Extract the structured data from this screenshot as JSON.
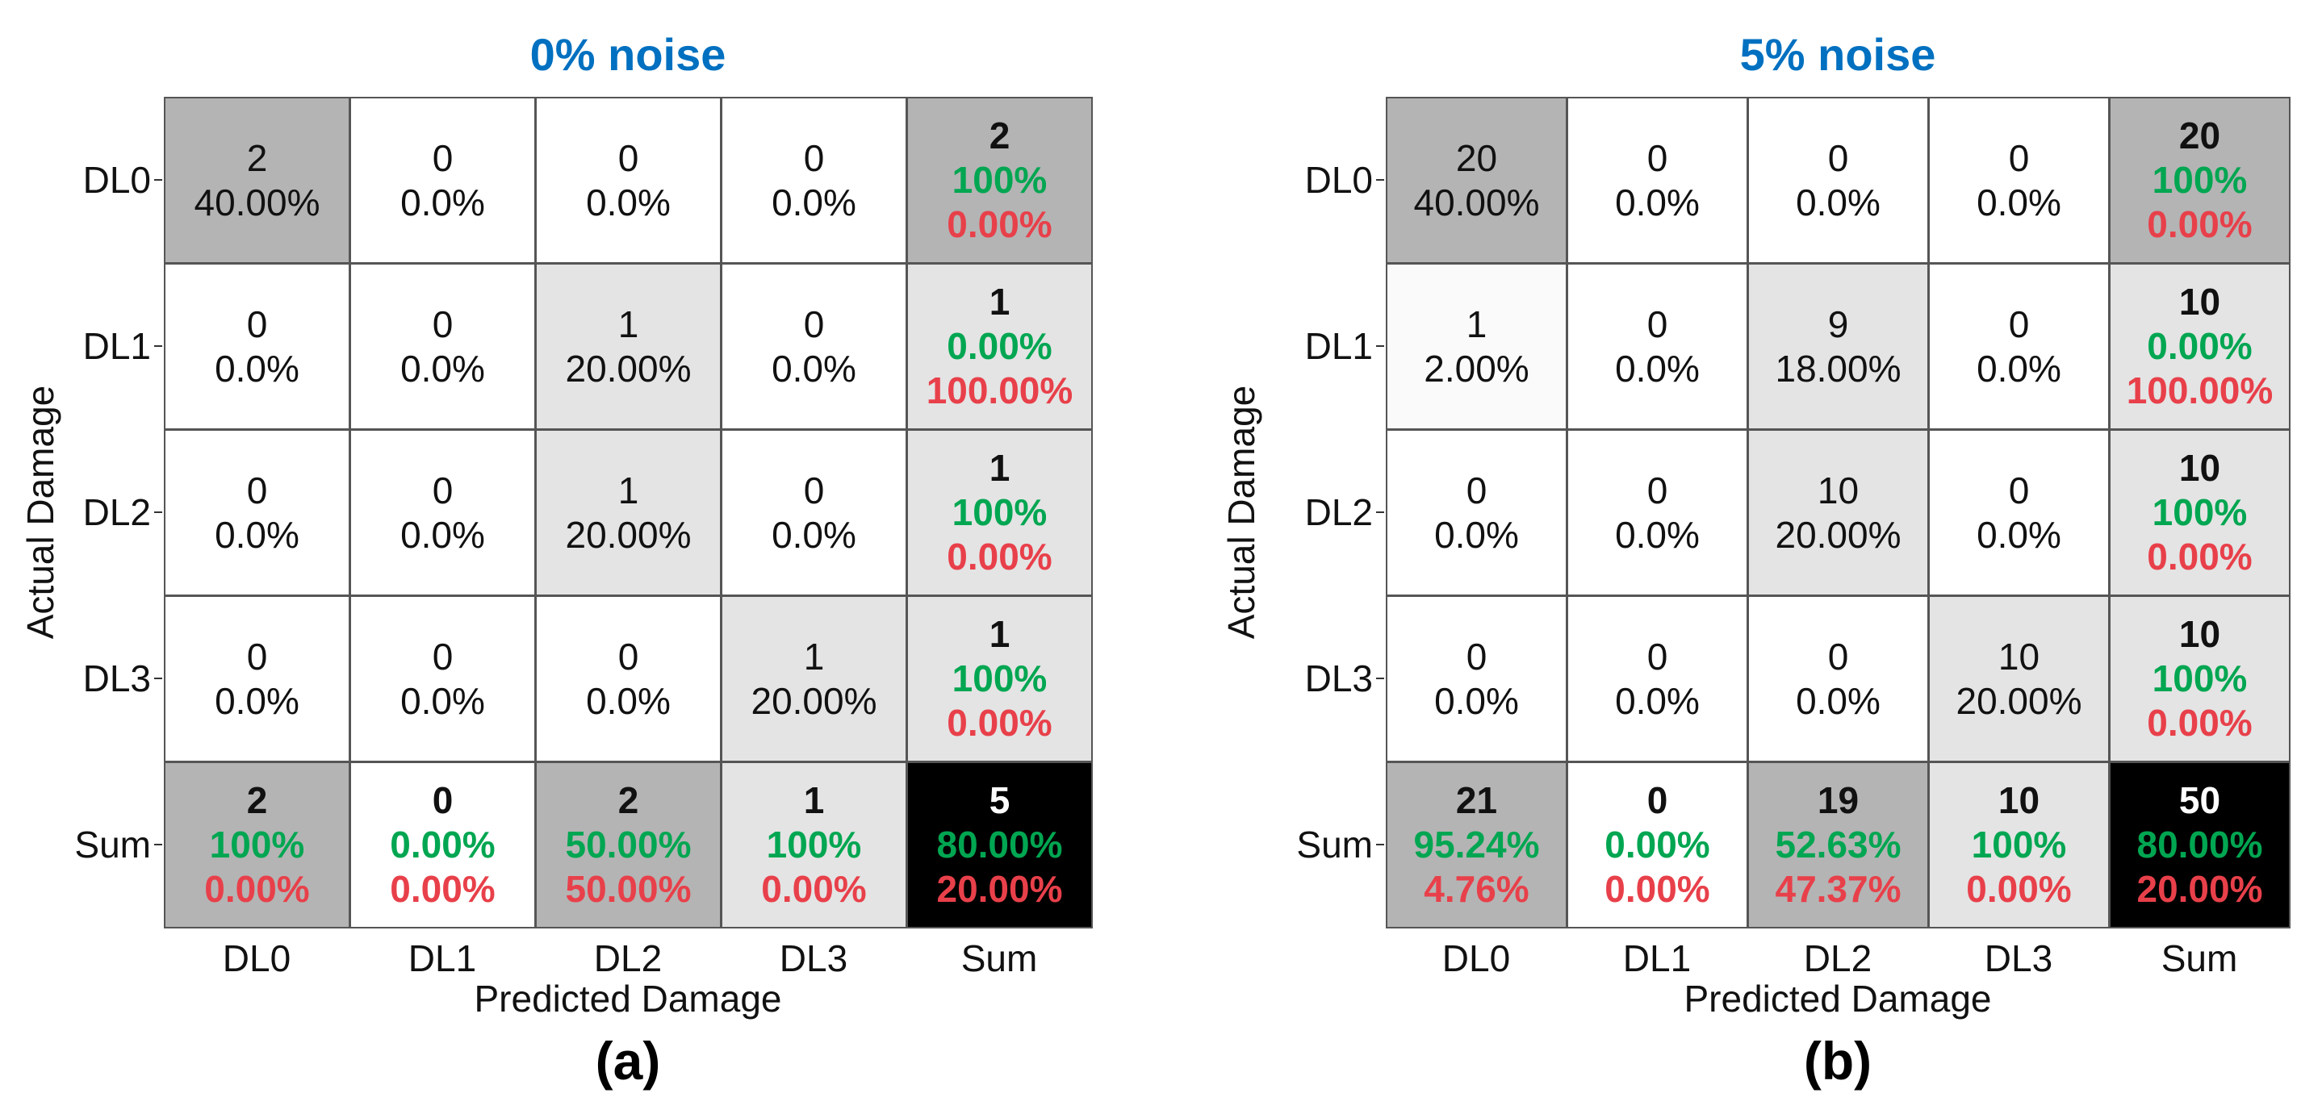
{
  "colors": {
    "title": "#0070C0",
    "green": "#00A651",
    "red": "#E8404A",
    "dark_gray": "#B4B4B4",
    "light_gray": "#E4E4E4",
    "very_light": "#FAFAFA",
    "white": "#FFFFFF",
    "black": "#000000"
  },
  "chart_data": [
    {
      "type": "table",
      "title": "0% noise",
      "panel_label": "(a)",
      "xlabel": "Predicted Damage",
      "ylabel": "Actual Damage",
      "row_labels": [
        "DL0",
        "DL1",
        "DL2",
        "DL3",
        "Sum"
      ],
      "col_labels": [
        "DL0",
        "DL1",
        "DL2",
        "DL3",
        "Sum"
      ],
      "matrix": [
        [
          {
            "count": "2",
            "pct": "40.00%",
            "fill": "dark_gray"
          },
          {
            "count": "0",
            "pct": "0.0%",
            "fill": "white"
          },
          {
            "count": "0",
            "pct": "0.0%",
            "fill": "white"
          },
          {
            "count": "0",
            "pct": "0.0%",
            "fill": "white"
          }
        ],
        [
          {
            "count": "0",
            "pct": "0.0%",
            "fill": "white"
          },
          {
            "count": "0",
            "pct": "0.0%",
            "fill": "white"
          },
          {
            "count": "1",
            "pct": "20.00%",
            "fill": "light_gray"
          },
          {
            "count": "0",
            "pct": "0.0%",
            "fill": "white"
          }
        ],
        [
          {
            "count": "0",
            "pct": "0.0%",
            "fill": "white"
          },
          {
            "count": "0",
            "pct": "0.0%",
            "fill": "white"
          },
          {
            "count": "1",
            "pct": "20.00%",
            "fill": "light_gray"
          },
          {
            "count": "0",
            "pct": "0.0%",
            "fill": "white"
          }
        ],
        [
          {
            "count": "0",
            "pct": "0.0%",
            "fill": "white"
          },
          {
            "count": "0",
            "pct": "0.0%",
            "fill": "white"
          },
          {
            "count": "0",
            "pct": "0.0%",
            "fill": "white"
          },
          {
            "count": "1",
            "pct": "20.00%",
            "fill": "light_gray"
          }
        ]
      ],
      "row_sums": [
        {
          "count": "2",
          "correct": "100%",
          "error": "0.00%",
          "fill": "dark_gray"
        },
        {
          "count": "1",
          "correct": "0.00%",
          "error": "100.00%",
          "fill": "light_gray"
        },
        {
          "count": "1",
          "correct": "100%",
          "error": "0.00%",
          "fill": "light_gray"
        },
        {
          "count": "1",
          "correct": "100%",
          "error": "0.00%",
          "fill": "light_gray"
        }
      ],
      "col_sums": [
        {
          "count": "2",
          "correct": "100%",
          "error": "0.00%",
          "fill": "dark_gray"
        },
        {
          "count": "0",
          "correct": "0.00%",
          "error": "0.00%",
          "fill": "white"
        },
        {
          "count": "2",
          "correct": "50.00%",
          "error": "50.00%",
          "fill": "dark_gray"
        },
        {
          "count": "1",
          "correct": "100%",
          "error": "0.00%",
          "fill": "light_gray"
        }
      ],
      "total": {
        "count": "5",
        "correct": "80.00%",
        "error": "20.00%",
        "fill": "black"
      }
    },
    {
      "type": "table",
      "title": "5% noise",
      "panel_label": "(b)",
      "xlabel": "Predicted Damage",
      "ylabel": "Actual Damage",
      "row_labels": [
        "DL0",
        "DL1",
        "DL2",
        "DL3",
        "Sum"
      ],
      "col_labels": [
        "DL0",
        "DL1",
        "DL2",
        "DL3",
        "Sum"
      ],
      "matrix": [
        [
          {
            "count": "20",
            "pct": "40.00%",
            "fill": "dark_gray"
          },
          {
            "count": "0",
            "pct": "0.0%",
            "fill": "white"
          },
          {
            "count": "0",
            "pct": "0.0%",
            "fill": "white"
          },
          {
            "count": "0",
            "pct": "0.0%",
            "fill": "white"
          }
        ],
        [
          {
            "count": "1",
            "pct": "2.00%",
            "fill": "very_light"
          },
          {
            "count": "0",
            "pct": "0.0%",
            "fill": "white"
          },
          {
            "count": "9",
            "pct": "18.00%",
            "fill": "light_gray"
          },
          {
            "count": "0",
            "pct": "0.0%",
            "fill": "white"
          }
        ],
        [
          {
            "count": "0",
            "pct": "0.0%",
            "fill": "white"
          },
          {
            "count": "0",
            "pct": "0.0%",
            "fill": "white"
          },
          {
            "count": "10",
            "pct": "20.00%",
            "fill": "light_gray"
          },
          {
            "count": "0",
            "pct": "0.0%",
            "fill": "white"
          }
        ],
        [
          {
            "count": "0",
            "pct": "0.0%",
            "fill": "white"
          },
          {
            "count": "0",
            "pct": "0.0%",
            "fill": "white"
          },
          {
            "count": "0",
            "pct": "0.0%",
            "fill": "white"
          },
          {
            "count": "10",
            "pct": "20.00%",
            "fill": "light_gray"
          }
        ]
      ],
      "row_sums": [
        {
          "count": "20",
          "correct": "100%",
          "error": "0.00%",
          "fill": "dark_gray"
        },
        {
          "count": "10",
          "correct": "0.00%",
          "error": "100.00%",
          "fill": "light_gray"
        },
        {
          "count": "10",
          "correct": "100%",
          "error": "0.00%",
          "fill": "light_gray"
        },
        {
          "count": "10",
          "correct": "100%",
          "error": "0.00%",
          "fill": "light_gray"
        }
      ],
      "col_sums": [
        {
          "count": "21",
          "correct": "95.24%",
          "error": "4.76%",
          "fill": "dark_gray"
        },
        {
          "count": "0",
          "correct": "0.00%",
          "error": "0.00%",
          "fill": "white"
        },
        {
          "count": "19",
          "correct": "52.63%",
          "error": "47.37%",
          "fill": "dark_gray"
        },
        {
          "count": "10",
          "correct": "100%",
          "error": "0.00%",
          "fill": "light_gray"
        }
      ],
      "total": {
        "count": "50",
        "correct": "80.00%",
        "error": "20.00%",
        "fill": "black"
      }
    }
  ]
}
